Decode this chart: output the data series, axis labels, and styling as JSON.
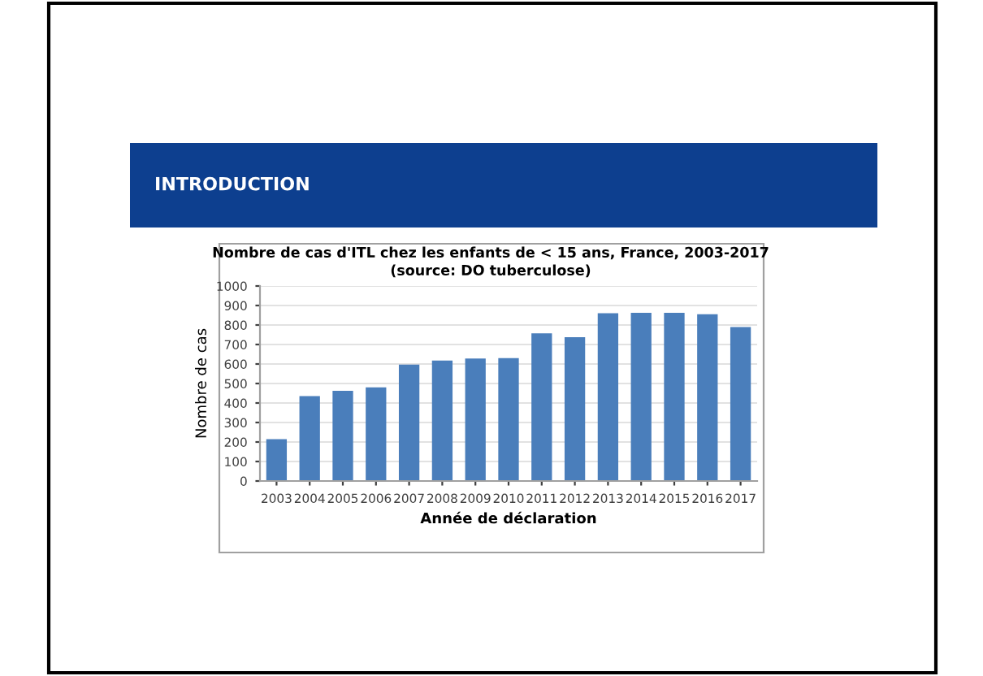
{
  "chart_data": {
    "type": "bar",
    "title": "Nombre de cas d'ITL chez les enfants de < 15 ans, France, 2003-2017",
    "subtitle": "(source: DO tuberculose)",
    "xlabel": "Année de déclaration",
    "ylabel": "Nombre de cas",
    "categories": [
      "2003",
      "2004",
      "2005",
      "2006",
      "2007",
      "2008",
      "2009",
      "2010",
      "2011",
      "2012",
      "2013",
      "2014",
      "2015",
      "2016",
      "2017"
    ],
    "values": [
      215,
      435,
      462,
      480,
      597,
      618,
      628,
      630,
      757,
      737,
      860,
      862,
      862,
      855,
      790
    ],
    "color": "#4a7ebb",
    "ylim": [
      0,
      1000
    ],
    "yticks": [
      0,
      100,
      200,
      300,
      400,
      500,
      600,
      700,
      800,
      900,
      1000
    ],
    "grid": "y",
    "legend": false,
    "annotations": [
      "INTRODUCTION"
    ]
  }
}
